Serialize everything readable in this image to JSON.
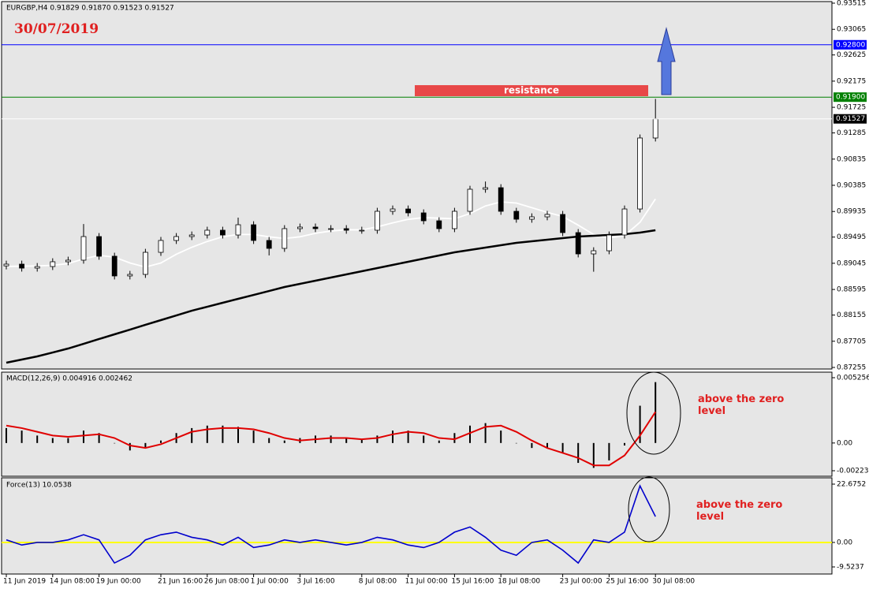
{
  "chart_data": [
    {
      "type": "candlestick",
      "title": "EURGBP,H4  0.91829 0.91870 0.91523 0.91527",
      "annotation": "30/07/2019",
      "zone_label": "resistance",
      "categories": [
        "11 Jun 2019",
        null,
        null,
        "14 Jun 08:00",
        null,
        null,
        "19 Jun 00:00",
        null,
        null,
        null,
        "21 Jun 16:00",
        null,
        null,
        "26 Jun 08:00",
        null,
        null,
        "1 Jul 00:00",
        null,
        null,
        "3 Jul 16:00",
        null,
        null,
        null,
        "8 Jul 08:00",
        null,
        null,
        "11 Jul 00:00",
        null,
        null,
        "15 Jul 16:00",
        null,
        null,
        "18 Jul 08:00",
        null,
        null,
        null,
        "23 Jul 00:00",
        null,
        null,
        "25 Jul 16:00",
        null,
        null,
        "30 Jul 08:00"
      ],
      "open": [
        0.89,
        0.8903,
        0.88962,
        0.88989,
        0.89071,
        0.89098,
        0.89504,
        0.89166,
        0.88827,
        0.88854,
        0.89233,
        0.89437,
        0.89504,
        0.89531,
        0.89613,
        0.89531,
        0.89707,
        0.89437,
        0.89301,
        0.8964,
        0.89667,
        0.8964,
        0.8964,
        0.89613,
        0.89613,
        0.89938,
        0.89978,
        0.89911,
        0.89775,
        0.8964,
        0.89938,
        0.90317,
        0.90344,
        0.89938,
        0.89802,
        0.89843,
        0.89884,
        0.89572,
        0.89206,
        0.8926,
        0.89531,
        0.89978,
        0.91198
      ],
      "high": [
        0.8909,
        0.8909,
        0.89049,
        0.89131,
        0.89158,
        0.8972,
        0.89564,
        0.89226,
        0.88914,
        0.89293,
        0.89497,
        0.89564,
        0.89591,
        0.89673,
        0.89673,
        0.8983,
        0.89767,
        0.89497,
        0.897,
        0.89727,
        0.89727,
        0.897,
        0.897,
        0.89673,
        0.89998,
        0.90038,
        0.90038,
        0.89971,
        0.89835,
        0.89998,
        0.90377,
        0.9045,
        0.90404,
        0.89998,
        0.89903,
        0.89944,
        0.89944,
        0.89632,
        0.8932,
        0.89591,
        0.90038,
        0.91258,
        0.9187
      ],
      "low": [
        0.8894,
        0.88902,
        0.88902,
        0.88929,
        0.89011,
        0.89038,
        0.89106,
        0.88767,
        0.88767,
        0.88794,
        0.89173,
        0.89377,
        0.89444,
        0.89471,
        0.89471,
        0.89471,
        0.89377,
        0.8918,
        0.89241,
        0.8958,
        0.8958,
        0.8958,
        0.89553,
        0.89553,
        0.89553,
        0.89878,
        0.89851,
        0.89715,
        0.8958,
        0.8958,
        0.89878,
        0.90257,
        0.89878,
        0.89742,
        0.89742,
        0.89783,
        0.89512,
        0.89146,
        0.889,
        0.892,
        0.89471,
        0.89918,
        0.91138
      ],
      "close": [
        0.8903,
        0.88962,
        0.88989,
        0.89071,
        0.89098,
        0.89504,
        0.89166,
        0.88827,
        0.88854,
        0.89233,
        0.89437,
        0.89504,
        0.89531,
        0.89613,
        0.89531,
        0.89707,
        0.89437,
        0.89301,
        0.8964,
        0.89667,
        0.8964,
        0.8964,
        0.89613,
        0.89613,
        0.89938,
        0.89978,
        0.89911,
        0.89775,
        0.8964,
        0.89938,
        0.90317,
        0.90344,
        0.89938,
        0.89802,
        0.89843,
        0.89884,
        0.89572,
        0.89206,
        0.8926,
        0.89531,
        0.89978,
        0.91198,
        0.91527
      ],
      "up_color": "#ffffff",
      "down_color": "#000000",
      "ma_lines": [
        {
          "color": "#ffffff",
          "values": [
            0.8899,
            0.88995,
            0.89,
            0.8901,
            0.8904,
            0.8912,
            0.8918,
            0.8915,
            0.8905,
            0.8898,
            0.8905,
            0.892,
            0.8932,
            0.8942,
            0.895,
            0.8954,
            0.8954,
            0.895,
            0.8947,
            0.895,
            0.8956,
            0.896,
            0.8962,
            0.8962,
            0.8967,
            0.8974,
            0.898,
            0.8983,
            0.8982,
            0.8981,
            0.899,
            0.9003,
            0.901,
            0.9008,
            0.9,
            0.8992,
            0.8985,
            0.897,
            0.8954,
            0.8948,
            0.8952,
            0.8975,
            0.9015
          ]
        },
        {
          "color": "#000000",
          "values": [
            0.87336,
            0.8739,
            0.87445,
            0.87512,
            0.8758,
            0.87661,
            0.87743,
            0.87824,
            0.87905,
            0.87987,
            0.88068,
            0.88149,
            0.8823,
            0.88298,
            0.88366,
            0.88434,
            0.88501,
            0.88569,
            0.88637,
            0.88691,
            0.88745,
            0.888,
            0.88854,
            0.88908,
            0.88962,
            0.89016,
            0.89071,
            0.89125,
            0.89179,
            0.89233,
            0.89274,
            0.89314,
            0.89355,
            0.89396,
            0.89423,
            0.8945,
            0.89477,
            0.89504,
            0.89518,
            0.89531,
            0.89545,
            0.89572,
            0.89613
          ]
        }
      ],
      "levels": [
        {
          "value": 0.928,
          "label": "0.92800",
          "color": "#0000ff",
          "text_color": "#ffffff"
        },
        {
          "value": 0.919,
          "label": "0.91900",
          "color": "#008000",
          "text_color": "#ffffff"
        },
        {
          "value": 0.91527,
          "label": "0.91527",
          "color": "#ffffff",
          "label_color": "#000000",
          "text_color": "#ffffff"
        }
      ],
      "ylim": [
        0.87255,
        0.93515
      ],
      "yticks": [
        0.87255,
        0.87705,
        0.88155,
        0.88595,
        0.89045,
        0.89495,
        0.89935,
        0.90385,
        0.90835,
        0.91285,
        0.91725,
        0.92175,
        0.92625,
        0.93065,
        0.93515
      ]
    },
    {
      "type": "macd",
      "title": "MACD(12,26,9) 0.004916 0.002462",
      "annotation": "above the zero level",
      "histogram": {
        "color": "#000000",
        "values": [
          0.0012,
          0.001,
          0.0006,
          0.0004,
          0.0004,
          0.001,
          0.0008,
          0.0,
          -0.0006,
          -0.0004,
          0.0002,
          0.0008,
          0.0012,
          0.0014,
          0.0014,
          0.0013,
          0.001,
          0.0004,
          0.0002,
          0.0004,
          0.0006,
          0.0006,
          0.0004,
          0.0003,
          0.0006,
          0.001,
          0.001,
          0.0006,
          0.0002,
          0.0008,
          0.0014,
          0.0016,
          0.001,
          0.0,
          -0.0004,
          -0.0004,
          -0.0008,
          -0.0016,
          -0.002,
          -0.0014,
          -0.0002,
          0.003,
          0.0049
        ]
      },
      "signal": {
        "color": "#e00000",
        "values": [
          0.0014,
          0.0012,
          0.0009,
          0.0006,
          0.0005,
          0.0006,
          0.0007,
          0.0004,
          -0.0002,
          -0.0004,
          -0.0001,
          0.0004,
          0.0009,
          0.0011,
          0.0012,
          0.0012,
          0.0011,
          0.0008,
          0.0004,
          0.0002,
          0.0003,
          0.0004,
          0.0004,
          0.0003,
          0.0004,
          0.0007,
          0.0009,
          0.0008,
          0.0004,
          0.0003,
          0.0008,
          0.0013,
          0.0014,
          0.0009,
          0.0002,
          -0.0004,
          -0.0008,
          -0.0012,
          -0.0018,
          -0.0018,
          -0.001,
          0.0006,
          0.0025
        ]
      },
      "ylim": [
        -0.002231,
        0.005256
      ],
      "yticks": [
        -0.002231,
        {
          "value": 0,
          "label": "0.00"
        },
        0.005256
      ]
    },
    {
      "type": "line",
      "title": "Force(13) 10.0538",
      "annotation": "above the zero level",
      "series": [
        {
          "color": "#0000cc",
          "values": [
            1,
            -1,
            0,
            0,
            1,
            3,
            1,
            -8,
            -5,
            1,
            3,
            4,
            2,
            1,
            -1,
            2,
            -2,
            -1,
            1,
            0,
            1,
            0,
            -1,
            0,
            2,
            1,
            -1,
            -2,
            0,
            4,
            6,
            2,
            -3,
            -5,
            0,
            1,
            -3,
            -8,
            1,
            0,
            4,
            22,
            10.0538
          ]
        }
      ],
      "zero_line_color": "#ffff00",
      "ylim": [
        -9.5237,
        22.6752
      ],
      "yticks": [
        -9.5237,
        {
          "value": 0,
          "label": "0.00"
        },
        22.6752
      ]
    }
  ]
}
